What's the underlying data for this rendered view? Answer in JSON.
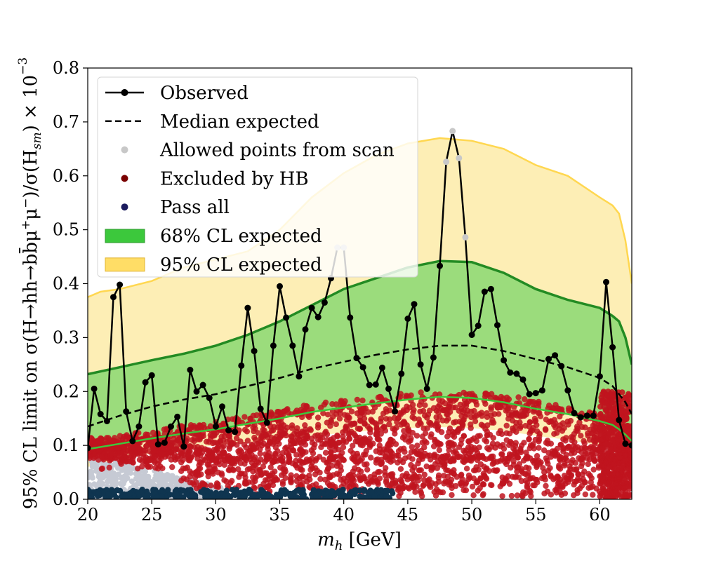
{
  "chart_data": {
    "type": "line",
    "title": "",
    "xlabel": "m_h [GeV]",
    "xlabel_parts": [
      "m",
      "h",
      " [GeV]"
    ],
    "ylabel": "95% CL limit on σ(H→hh→bb̄μ⁺μ⁻)/σ(H_sm) × 10⁻³",
    "ylabel_main": "95% CL limit on σ(H→hh→bb̄μ",
    "ylabel_mu_plus": "+",
    "ylabel_mu2": "μ",
    "ylabel_mu_minus": "−",
    "ylabel_mid": ")/σ(H",
    "ylabel_sub": "sm",
    "ylabel_end": ") × 10",
    "ylabel_exp": "−3",
    "xlim": [
      20,
      62.5
    ],
    "ylim": [
      0,
      0.8
    ],
    "x_ticks": [
      "20",
      "25",
      "30",
      "35",
      "40",
      "45",
      "50",
      "55",
      "60"
    ],
    "y_ticks": [
      "0.0",
      "0.1",
      "0.2",
      "0.3",
      "0.4",
      "0.5",
      "0.6",
      "0.7",
      "0.8"
    ],
    "grid": false,
    "legend_position": "top-left",
    "legend": [
      {
        "label": "Observed",
        "style": "line-marker",
        "color": "#000000"
      },
      {
        "label": "Median expected",
        "style": "dashed",
        "color": "#000000"
      },
      {
        "label": "Allowed points from scan",
        "style": "dot",
        "color": "#c8c8c8"
      },
      {
        "label": "Excluded by HB",
        "style": "dot",
        "color": "#7a0000"
      },
      {
        "label": "Pass all",
        "style": "dot",
        "color": "#1b1b5e"
      },
      {
        "label": "68% CL expected",
        "style": "patch",
        "color": "#3cc83c"
      },
      {
        "label": "95% CL expected",
        "style": "patch",
        "color": "#ffdd66"
      }
    ],
    "colors": {
      "band95": "#fdeeb5",
      "band95_edge": "#ffd750",
      "band68": "#9bdc7c",
      "band68_upper_edge": "#238b23",
      "band68_lower_edge": "#3cc83c",
      "observed": "#000000",
      "excluded": "#c0141e",
      "allowed": "#c6cad4",
      "pass_all": "#0f3550"
    },
    "series": [
      {
        "name": "Observed",
        "x": [
          20,
          20.5,
          21,
          21.5,
          22,
          22.5,
          23,
          23.5,
          24,
          24.5,
          25,
          25.5,
          26,
          26.5,
          27,
          27.5,
          28,
          28.5,
          29,
          29.5,
          30,
          30.5,
          31,
          31.5,
          32,
          32.5,
          33,
          33.5,
          34,
          34.5,
          35,
          35.5,
          36,
          36.5,
          37,
          37.5,
          38,
          38.5,
          39,
          39.5,
          40,
          40.5,
          41,
          41.5,
          42,
          42.5,
          43,
          43.5,
          44,
          44.5,
          45,
          45.5,
          46,
          46.5,
          47,
          47.5,
          48,
          48.5,
          49,
          49.5,
          50,
          50.5,
          51,
          51.5,
          52,
          52.5,
          53,
          53.5,
          54,
          54.5,
          55,
          55.5,
          56,
          56.5,
          57,
          57.5,
          58,
          58.5,
          59,
          59.5,
          60,
          60.5,
          61,
          61.5,
          62,
          62.5
        ],
        "y": [
          0.095,
          0.205,
          0.158,
          0.145,
          0.375,
          0.398,
          0.163,
          0.108,
          0.135,
          0.217,
          0.23,
          0.102,
          0.105,
          0.135,
          0.153,
          0.098,
          0.24,
          0.2,
          0.212,
          0.188,
          0.135,
          0.172,
          0.128,
          0.125,
          0.248,
          0.355,
          0.275,
          0.168,
          0.142,
          0.285,
          0.395,
          0.337,
          0.285,
          0.228,
          0.315,
          0.355,
          0.338,
          0.365,
          0.41,
          0.467,
          0.467,
          0.337,
          0.262,
          0.245,
          0.212,
          0.213,
          0.244,
          0.205,
          0.163,
          0.233,
          0.335,
          0.362,
          0.25,
          0.205,
          0.263,
          0.433,
          0.626,
          0.683,
          0.633,
          0.486,
          0.305,
          0.322,
          0.385,
          0.39,
          0.323,
          0.258,
          0.235,
          0.233,
          0.222,
          0.195,
          0.197,
          0.202,
          0.26,
          0.267,
          0.247,
          0.202,
          0.16,
          0.152,
          0.155,
          0.155,
          0.228,
          0.403,
          0.282,
          0.147,
          0.103,
          0.1
        ]
      },
      {
        "name": "Median expected",
        "x": [
          20,
          22.5,
          25,
          27.5,
          30,
          32.5,
          35,
          37.5,
          40,
          42.5,
          45,
          47.5,
          50,
          52.5,
          55,
          57.5,
          60,
          61,
          61.5,
          62,
          62.5
        ],
        "y": [
          0.135,
          0.155,
          0.172,
          0.185,
          0.195,
          0.21,
          0.225,
          0.242,
          0.255,
          0.268,
          0.278,
          0.285,
          0.285,
          0.275,
          0.26,
          0.245,
          0.225,
          0.21,
          0.195,
          0.18,
          0.158
        ]
      },
      {
        "name": "68% CL expected",
        "x": [
          20,
          22.5,
          25,
          27.5,
          30,
          32.5,
          35,
          37.5,
          40,
          42.5,
          45,
          47.5,
          50,
          52.5,
          55,
          57.5,
          60,
          61,
          61.5,
          62,
          62.5
        ],
        "upper": [
          0.232,
          0.245,
          0.258,
          0.27,
          0.285,
          0.305,
          0.33,
          0.36,
          0.39,
          0.41,
          0.43,
          0.442,
          0.44,
          0.42,
          0.39,
          0.37,
          0.355,
          0.34,
          0.33,
          0.3,
          0.25
        ],
        "lower": [
          0.093,
          0.103,
          0.113,
          0.122,
          0.13,
          0.14,
          0.15,
          0.162,
          0.17,
          0.178,
          0.185,
          0.19,
          0.188,
          0.18,
          0.168,
          0.158,
          0.145,
          0.138,
          0.13,
          0.12,
          0.108
        ]
      },
      {
        "name": "95% CL expected",
        "x": [
          20,
          21,
          22.5,
          25,
          27.5,
          30,
          32.5,
          35,
          37.5,
          40,
          42.5,
          45,
          47.5,
          50,
          52.5,
          55,
          57.5,
          60,
          61,
          61.5,
          62,
          62.5
        ],
        "upper": [
          0.375,
          0.385,
          0.39,
          0.405,
          0.43,
          0.445,
          0.46,
          0.5,
          0.56,
          0.605,
          0.638,
          0.66,
          0.67,
          0.665,
          0.65,
          0.62,
          0.6,
          0.56,
          0.545,
          0.53,
          0.48,
          0.4
        ],
        "lower": [
          0.06,
          0.066,
          0.075,
          0.085,
          0.093,
          0.1,
          0.105,
          0.112,
          0.118,
          0.123,
          0.128,
          0.132,
          0.134,
          0.132,
          0.127,
          0.118,
          0.11,
          0.1,
          0.095,
          0.09,
          0.082,
          0.075
        ]
      }
    ],
    "scatter_regions": [
      {
        "name": "Excluded by HB",
        "x_range": [
          20,
          62.5
        ],
        "y_range": [
          0.01,
          0.2
        ],
        "note": "dense red points, densest between 0.07 and 0.15"
      },
      {
        "name": "Allowed points from scan",
        "x_range": [
          20,
          30
        ],
        "y_range": [
          0,
          0.09
        ],
        "note": "grey points at low mass"
      },
      {
        "name": "Pass all",
        "x_range": [
          20,
          45
        ],
        "y_range": [
          0,
          0.02
        ],
        "note": "dark points along the x-axis"
      }
    ]
  }
}
